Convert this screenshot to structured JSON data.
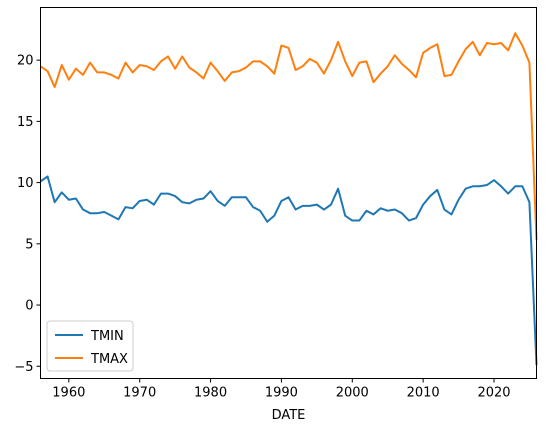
{
  "chart_data": {
    "type": "line",
    "title": "",
    "xlabel": "DATE",
    "ylabel": "",
    "xlim": [
      1956,
      2026
    ],
    "ylim": [
      -6,
      24.3
    ],
    "xticks": [
      1960,
      1970,
      1980,
      1990,
      2000,
      2010,
      2020
    ],
    "yticks": [
      -5,
      0,
      5,
      10,
      15,
      20
    ],
    "grid": false,
    "legend_position": "lower-left",
    "series": [
      {
        "name": "TMIN",
        "color": "#1f77b4",
        "points": [
          [
            1956,
            10.1
          ],
          [
            1957,
            10.5
          ],
          [
            1958,
            8.4
          ],
          [
            1959,
            9.2
          ],
          [
            1960,
            8.6
          ],
          [
            1961,
            8.7
          ],
          [
            1962,
            7.8
          ],
          [
            1963,
            7.5
          ],
          [
            1964,
            7.5
          ],
          [
            1965,
            7.6
          ],
          [
            1966,
            7.3
          ],
          [
            1967,
            7.0
          ],
          [
            1968,
            8.0
          ],
          [
            1969,
            7.9
          ],
          [
            1970,
            8.5
          ],
          [
            1971,
            8.6
          ],
          [
            1972,
            8.2
          ],
          [
            1973,
            9.1
          ],
          [
            1974,
            9.1
          ],
          [
            1975,
            8.9
          ],
          [
            1976,
            8.4
          ],
          [
            1977,
            8.3
          ],
          [
            1978,
            8.6
          ],
          [
            1979,
            8.7
          ],
          [
            1980,
            9.3
          ],
          [
            1981,
            8.5
          ],
          [
            1982,
            8.1
          ],
          [
            1983,
            8.8
          ],
          [
            1984,
            8.8
          ],
          [
            1985,
            8.8
          ],
          [
            1986,
            8.0
          ],
          [
            1987,
            7.7
          ],
          [
            1988,
            6.8
          ],
          [
            1989,
            7.3
          ],
          [
            1990,
            8.5
          ],
          [
            1991,
            8.8
          ],
          [
            1992,
            7.8
          ],
          [
            1993,
            8.1
          ],
          [
            1994,
            8.1
          ],
          [
            1995,
            8.2
          ],
          [
            1996,
            7.8
          ],
          [
            1997,
            8.2
          ],
          [
            1998,
            9.5
          ],
          [
            1999,
            7.3
          ],
          [
            2000,
            6.9
          ],
          [
            2001,
            6.9
          ],
          [
            2002,
            7.7
          ],
          [
            2003,
            7.4
          ],
          [
            2004,
            7.9
          ],
          [
            2005,
            7.7
          ],
          [
            2006,
            7.8
          ],
          [
            2007,
            7.5
          ],
          [
            2008,
            6.9
          ],
          [
            2009,
            7.1
          ],
          [
            2010,
            8.2
          ],
          [
            2011,
            8.9
          ],
          [
            2012,
            9.4
          ],
          [
            2013,
            7.8
          ],
          [
            2014,
            7.4
          ],
          [
            2015,
            8.6
          ],
          [
            2016,
            9.5
          ],
          [
            2017,
            9.7
          ],
          [
            2018,
            9.7
          ],
          [
            2019,
            9.8
          ],
          [
            2020,
            10.2
          ],
          [
            2021,
            9.7
          ],
          [
            2022,
            9.1
          ],
          [
            2023,
            9.7
          ],
          [
            2024,
            9.7
          ],
          [
            2025,
            8.4
          ],
          [
            2026,
            -4.9
          ]
        ]
      },
      {
        "name": "TMAX",
        "color": "#ff7f0e",
        "points": [
          [
            1956,
            19.5
          ],
          [
            1957,
            19.1
          ],
          [
            1958,
            17.8
          ],
          [
            1959,
            19.6
          ],
          [
            1960,
            18.4
          ],
          [
            1961,
            19.3
          ],
          [
            1962,
            18.8
          ],
          [
            1963,
            19.8
          ],
          [
            1964,
            19.0
          ],
          [
            1965,
            19.0
          ],
          [
            1966,
            18.8
          ],
          [
            1967,
            18.5
          ],
          [
            1968,
            19.8
          ],
          [
            1969,
            19.0
          ],
          [
            1970,
            19.6
          ],
          [
            1971,
            19.5
          ],
          [
            1972,
            19.2
          ],
          [
            1973,
            19.9
          ],
          [
            1974,
            20.3
          ],
          [
            1975,
            19.3
          ],
          [
            1976,
            20.3
          ],
          [
            1977,
            19.4
          ],
          [
            1978,
            19.0
          ],
          [
            1979,
            18.5
          ],
          [
            1980,
            19.8
          ],
          [
            1981,
            19.1
          ],
          [
            1982,
            18.3
          ],
          [
            1983,
            19.0
          ],
          [
            1984,
            19.1
          ],
          [
            1985,
            19.4
          ],
          [
            1986,
            19.9
          ],
          [
            1987,
            19.9
          ],
          [
            1988,
            19.5
          ],
          [
            1989,
            18.9
          ],
          [
            1990,
            21.2
          ],
          [
            1991,
            21.0
          ],
          [
            1992,
            19.2
          ],
          [
            1993,
            19.5
          ],
          [
            1994,
            20.1
          ],
          [
            1995,
            19.8
          ],
          [
            1996,
            18.9
          ],
          [
            1997,
            20.0
          ],
          [
            1998,
            21.5
          ],
          [
            1999,
            19.9
          ],
          [
            2000,
            18.7
          ],
          [
            2001,
            19.8
          ],
          [
            2002,
            19.9
          ],
          [
            2003,
            18.2
          ],
          [
            2004,
            18.9
          ],
          [
            2005,
            19.5
          ],
          [
            2006,
            20.4
          ],
          [
            2007,
            19.7
          ],
          [
            2008,
            19.2
          ],
          [
            2009,
            18.6
          ],
          [
            2010,
            20.6
          ],
          [
            2011,
            21.0
          ],
          [
            2012,
            21.3
          ],
          [
            2013,
            18.7
          ],
          [
            2014,
            18.8
          ],
          [
            2015,
            19.9
          ],
          [
            2016,
            20.9
          ],
          [
            2017,
            21.5
          ],
          [
            2018,
            20.4
          ],
          [
            2019,
            21.4
          ],
          [
            2020,
            21.3
          ],
          [
            2021,
            21.4
          ],
          [
            2022,
            20.8
          ],
          [
            2023,
            22.2
          ],
          [
            2024,
            21.2
          ],
          [
            2025,
            19.8
          ],
          [
            2026,
            5.3
          ]
        ]
      }
    ]
  }
}
